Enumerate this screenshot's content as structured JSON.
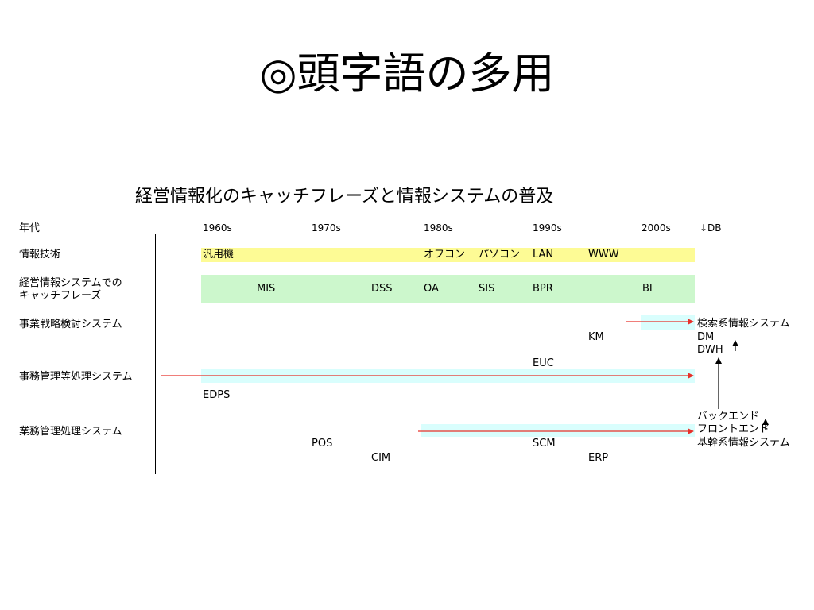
{
  "slide": {
    "title": "◎頭字語の多用"
  },
  "diagram": {
    "title": "経営情報化のキャッチフレーズと情報システムの普及",
    "header_label": "年代",
    "decades": [
      "1960s",
      "1970s",
      "1980s",
      "1990s",
      "2000s"
    ],
    "db_marker": "↓DB",
    "rows": {
      "it": "情報技術",
      "catch_line1": "経営情報システムでの",
      "catch_line2": "キャッチフレーズ",
      "strategy": "事業戦略検討システム",
      "office": "事務管理等処理システム",
      "business": "業務管理処理システム"
    },
    "it_terms": {
      "mainframe": "汎用機",
      "office_computer": "オフコン",
      "pc": "パソコン",
      "lan": "LAN",
      "www": "WWW"
    },
    "catch_terms": {
      "mis": "MIS",
      "dss": "DSS",
      "oa": "OA",
      "sis": "SIS",
      "bpr": "BPR",
      "bi": "BI"
    },
    "terms": {
      "km": "KM",
      "euc": "EUC",
      "edps": "EDPS",
      "pos": "POS",
      "cim": "CIM",
      "scm": "SCM",
      "erp": "ERP"
    },
    "right_labels": {
      "search_info": "検索系情報システム",
      "dm": "DM",
      "dwh": "DWH",
      "backend": "バックエンド",
      "frontend": "フロントエンド",
      "core_info": "基幹系情報システム"
    },
    "colors": {
      "it_band": "#fdfb95",
      "catch_band": "#ccf7cc",
      "system_band": "#d9fefd",
      "arrow": "#e8302a"
    }
  }
}
